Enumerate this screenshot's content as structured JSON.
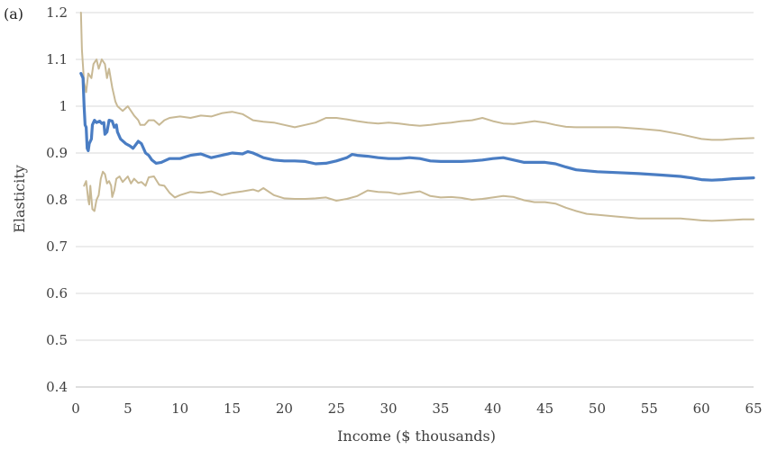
{
  "chart_data": {
    "type": "line",
    "panel_label": "(a)",
    "title": "",
    "xlabel": "Income ($ thousands)",
    "ylabel": "Elasticity",
    "xlim": [
      0,
      65
    ],
    "ylim": [
      0.4,
      1.2
    ],
    "xticks": [
      0,
      5,
      10,
      15,
      20,
      25,
      30,
      35,
      40,
      45,
      50,
      55,
      60,
      65
    ],
    "yticks": [
      0.4,
      0.5,
      0.6,
      0.7,
      0.8,
      0.9,
      1,
      1.1,
      1.2
    ],
    "ytick_labels": [
      "0.4",
      "0.5",
      "0.6",
      "0.7",
      "0.8",
      "0.9",
      "1",
      "1.1",
      "1.2"
    ],
    "grid": "horizontal",
    "legend": "none",
    "series": [
      {
        "role": "upper-bound",
        "color": "#c8b995",
        "points": [
          [
            0.5,
            1.2
          ],
          [
            0.6,
            1.12
          ],
          [
            0.8,
            1.05
          ],
          [
            1.0,
            1.03
          ],
          [
            1.2,
            1.07
          ],
          [
            1.5,
            1.06
          ],
          [
            1.7,
            1.09
          ],
          [
            2.0,
            1.1
          ],
          [
            2.2,
            1.08
          ],
          [
            2.5,
            1.1
          ],
          [
            2.8,
            1.09
          ],
          [
            3.0,
            1.06
          ],
          [
            3.2,
            1.08
          ],
          [
            3.5,
            1.04
          ],
          [
            3.8,
            1.01
          ],
          [
            4.0,
            1.0
          ],
          [
            4.5,
            0.99
          ],
          [
            5.0,
            1.0
          ],
          [
            5.3,
            0.99
          ],
          [
            5.6,
            0.98
          ],
          [
            6.0,
            0.97
          ],
          [
            6.2,
            0.96
          ],
          [
            6.6,
            0.96
          ],
          [
            7.0,
            0.97
          ],
          [
            7.5,
            0.97
          ],
          [
            8.0,
            0.96
          ],
          [
            8.5,
            0.97
          ],
          [
            9.0,
            0.975
          ],
          [
            10,
            0.978
          ],
          [
            11,
            0.975
          ],
          [
            12,
            0.98
          ],
          [
            13,
            0.978
          ],
          [
            14,
            0.985
          ],
          [
            15,
            0.988
          ],
          [
            16,
            0.983
          ],
          [
            17,
            0.97
          ],
          [
            18,
            0.967
          ],
          [
            19,
            0.965
          ],
          [
            20,
            0.96
          ],
          [
            21,
            0.955
          ],
          [
            22,
            0.96
          ],
          [
            23,
            0.965
          ],
          [
            24,
            0.975
          ],
          [
            25,
            0.975
          ],
          [
            26,
            0.972
          ],
          [
            27,
            0.968
          ],
          [
            28,
            0.965
          ],
          [
            29,
            0.963
          ],
          [
            30,
            0.965
          ],
          [
            31,
            0.963
          ],
          [
            32,
            0.96
          ],
          [
            33,
            0.958
          ],
          [
            34,
            0.96
          ],
          [
            35,
            0.963
          ],
          [
            36,
            0.965
          ],
          [
            37,
            0.968
          ],
          [
            38,
            0.97
          ],
          [
            39,
            0.975
          ],
          [
            40,
            0.968
          ],
          [
            41,
            0.963
          ],
          [
            42,
            0.962
          ],
          [
            43,
            0.965
          ],
          [
            44,
            0.968
          ],
          [
            45,
            0.965
          ],
          [
            46,
            0.96
          ],
          [
            47,
            0.956
          ],
          [
            48,
            0.955
          ],
          [
            50,
            0.955
          ],
          [
            52,
            0.955
          ],
          [
            54,
            0.952
          ],
          [
            56,
            0.948
          ],
          [
            58,
            0.94
          ],
          [
            59,
            0.935
          ],
          [
            60,
            0.93
          ],
          [
            61,
            0.928
          ],
          [
            62,
            0.928
          ],
          [
            63,
            0.93
          ],
          [
            64,
            0.931
          ],
          [
            65,
            0.932
          ]
        ]
      },
      {
        "role": "estimate",
        "color": "#4a7dc3",
        "points": [
          [
            0.5,
            1.07
          ],
          [
            0.7,
            1.06
          ],
          [
            0.8,
            1.0
          ],
          [
            0.9,
            0.96
          ],
          [
            1.0,
            0.955
          ],
          [
            1.1,
            0.91
          ],
          [
            1.2,
            0.905
          ],
          [
            1.3,
            0.92
          ],
          [
            1.5,
            0.93
          ],
          [
            1.6,
            0.96
          ],
          [
            1.8,
            0.97
          ],
          [
            2.0,
            0.965
          ],
          [
            2.3,
            0.968
          ],
          [
            2.5,
            0.963
          ],
          [
            2.7,
            0.965
          ],
          [
            2.8,
            0.94
          ],
          [
            3.0,
            0.945
          ],
          [
            3.2,
            0.97
          ],
          [
            3.5,
            0.968
          ],
          [
            3.7,
            0.955
          ],
          [
            3.9,
            0.96
          ],
          [
            4.0,
            0.945
          ],
          [
            4.3,
            0.93
          ],
          [
            4.8,
            0.92
          ],
          [
            5.2,
            0.915
          ],
          [
            5.5,
            0.91
          ],
          [
            6.0,
            0.925
          ],
          [
            6.3,
            0.92
          ],
          [
            6.7,
            0.9
          ],
          [
            7.0,
            0.895
          ],
          [
            7.3,
            0.885
          ],
          [
            7.7,
            0.878
          ],
          [
            8.2,
            0.88
          ],
          [
            9.0,
            0.888
          ],
          [
            10,
            0.888
          ],
          [
            11,
            0.895
          ],
          [
            12,
            0.898
          ],
          [
            13,
            0.89
          ],
          [
            14,
            0.895
          ],
          [
            15,
            0.9
          ],
          [
            16,
            0.898
          ],
          [
            16.5,
            0.903
          ],
          [
            17,
            0.9
          ],
          [
            17.5,
            0.895
          ],
          [
            18,
            0.89
          ],
          [
            19,
            0.885
          ],
          [
            20,
            0.883
          ],
          [
            21,
            0.883
          ],
          [
            22,
            0.882
          ],
          [
            23,
            0.877
          ],
          [
            24,
            0.878
          ],
          [
            25,
            0.883
          ],
          [
            26,
            0.89
          ],
          [
            26.5,
            0.897
          ],
          [
            27,
            0.895
          ],
          [
            28,
            0.893
          ],
          [
            29,
            0.89
          ],
          [
            30,
            0.888
          ],
          [
            31,
            0.888
          ],
          [
            32,
            0.89
          ],
          [
            33,
            0.888
          ],
          [
            34,
            0.883
          ],
          [
            35,
            0.882
          ],
          [
            36,
            0.882
          ],
          [
            37,
            0.882
          ],
          [
            38,
            0.883
          ],
          [
            39,
            0.885
          ],
          [
            40,
            0.888
          ],
          [
            41,
            0.89
          ],
          [
            42,
            0.885
          ],
          [
            43,
            0.88
          ],
          [
            44,
            0.88
          ],
          [
            45,
            0.88
          ],
          [
            46,
            0.877
          ],
          [
            47,
            0.87
          ],
          [
            48,
            0.864
          ],
          [
            50,
            0.86
          ],
          [
            52,
            0.858
          ],
          [
            54,
            0.856
          ],
          [
            56,
            0.853
          ],
          [
            58,
            0.85
          ],
          [
            59,
            0.847
          ],
          [
            60,
            0.843
          ],
          [
            61,
            0.842
          ],
          [
            62,
            0.843
          ],
          [
            63,
            0.845
          ],
          [
            64,
            0.846
          ],
          [
            65,
            0.847
          ]
        ]
      },
      {
        "role": "lower-bound",
        "color": "#c8b995",
        "points": [
          [
            0.8,
            0.83
          ],
          [
            1.0,
            0.84
          ],
          [
            1.2,
            0.8
          ],
          [
            1.3,
            0.79
          ],
          [
            1.4,
            0.83
          ],
          [
            1.6,
            0.78
          ],
          [
            1.8,
            0.776
          ],
          [
            2.0,
            0.8
          ],
          [
            2.2,
            0.81
          ],
          [
            2.4,
            0.845
          ],
          [
            2.6,
            0.86
          ],
          [
            2.8,
            0.855
          ],
          [
            3.0,
            0.835
          ],
          [
            3.2,
            0.84
          ],
          [
            3.4,
            0.83
          ],
          [
            3.5,
            0.806
          ],
          [
            3.7,
            0.82
          ],
          [
            3.9,
            0.845
          ],
          [
            4.2,
            0.85
          ],
          [
            4.5,
            0.838
          ],
          [
            5.0,
            0.85
          ],
          [
            5.3,
            0.835
          ],
          [
            5.6,
            0.845
          ],
          [
            6.0,
            0.836
          ],
          [
            6.3,
            0.838
          ],
          [
            6.7,
            0.83
          ],
          [
            7.0,
            0.848
          ],
          [
            7.5,
            0.85
          ],
          [
            8.0,
            0.832
          ],
          [
            8.5,
            0.83
          ],
          [
            9.0,
            0.815
          ],
          [
            9.5,
            0.805
          ],
          [
            10,
            0.81
          ],
          [
            11,
            0.817
          ],
          [
            12,
            0.815
          ],
          [
            13,
            0.818
          ],
          [
            14,
            0.81
          ],
          [
            15,
            0.815
          ],
          [
            16,
            0.818
          ],
          [
            17,
            0.822
          ],
          [
            17.5,
            0.818
          ],
          [
            18,
            0.825
          ],
          [
            19,
            0.81
          ],
          [
            20,
            0.803
          ],
          [
            21,
            0.802
          ],
          [
            22,
            0.802
          ],
          [
            23,
            0.803
          ],
          [
            24,
            0.805
          ],
          [
            25,
            0.798
          ],
          [
            26,
            0.802
          ],
          [
            27,
            0.808
          ],
          [
            28,
            0.82
          ],
          [
            29,
            0.817
          ],
          [
            30,
            0.816
          ],
          [
            31,
            0.812
          ],
          [
            32,
            0.815
          ],
          [
            33,
            0.818
          ],
          [
            34,
            0.808
          ],
          [
            35,
            0.805
          ],
          [
            36,
            0.806
          ],
          [
            37,
            0.804
          ],
          [
            38,
            0.8
          ],
          [
            39,
            0.802
          ],
          [
            40,
            0.805
          ],
          [
            41,
            0.808
          ],
          [
            42,
            0.806
          ],
          [
            43,
            0.799
          ],
          [
            44,
            0.795
          ],
          [
            45,
            0.795
          ],
          [
            46,
            0.792
          ],
          [
            47,
            0.783
          ],
          [
            48,
            0.776
          ],
          [
            49,
            0.77
          ],
          [
            50,
            0.768
          ],
          [
            52,
            0.764
          ],
          [
            54,
            0.76
          ],
          [
            56,
            0.76
          ],
          [
            58,
            0.76
          ],
          [
            59,
            0.758
          ],
          [
            60,
            0.756
          ],
          [
            61,
            0.755
          ],
          [
            62,
            0.756
          ],
          [
            63,
            0.757
          ],
          [
            64,
            0.758
          ],
          [
            65,
            0.758
          ]
        ]
      }
    ]
  }
}
